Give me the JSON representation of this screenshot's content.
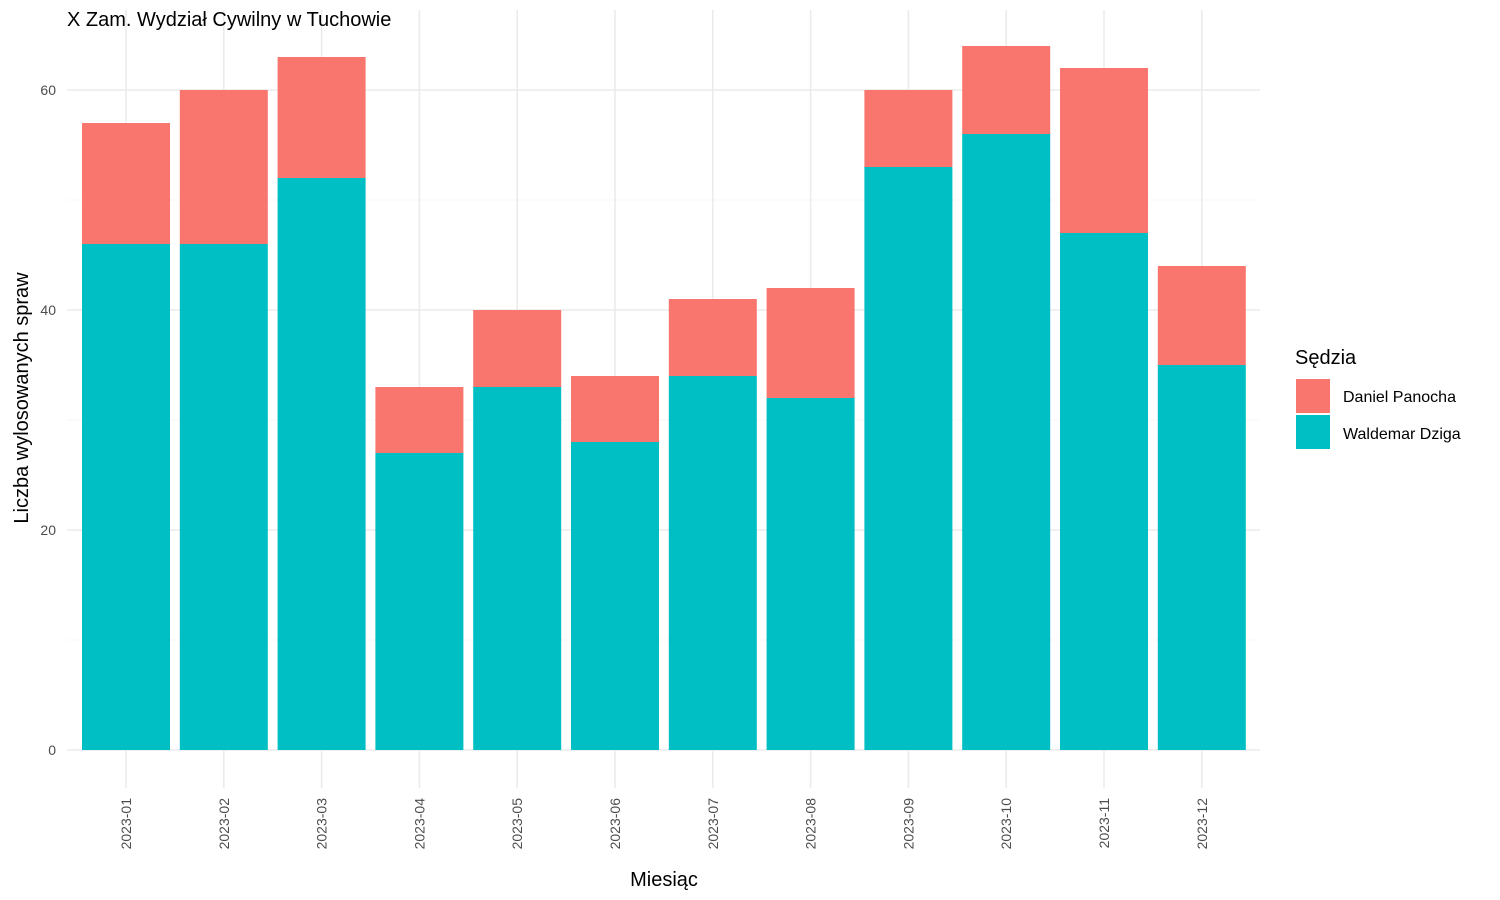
{
  "chart_data": {
    "type": "bar",
    "stacked": true,
    "title": "X Zam. Wydział Cywilny w Tuchowie",
    "xlabel": "Miesiąc",
    "ylabel": "Liczba wylosowanych spraw",
    "categories": [
      "2023-01",
      "2023-02",
      "2023-03",
      "2023-04",
      "2023-05",
      "2023-06",
      "2023-07",
      "2023-08",
      "2023-09",
      "2023-10",
      "2023-11",
      "2023-12"
    ],
    "series": [
      {
        "name": "Waldemar Dziga",
        "color": "#00BFC4",
        "values": [
          46,
          46,
          52,
          27,
          33,
          28,
          34,
          32,
          53,
          56,
          47,
          35
        ]
      },
      {
        "name": "Daniel Panocha",
        "color": "#F8766D",
        "values": [
          11,
          14,
          11,
          6,
          7,
          6,
          7,
          10,
          7,
          8,
          15,
          9
        ]
      }
    ],
    "ylim": [
      0,
      67
    ],
    "yticks": [
      0,
      20,
      40,
      60
    ],
    "grid": true,
    "legend": {
      "title": "Sędzia",
      "position": "right",
      "entries": [
        {
          "label": "Daniel Panocha",
          "color": "#F8766D"
        },
        {
          "label": "Waldemar Dziga",
          "color": "#00BFC4"
        }
      ]
    }
  }
}
